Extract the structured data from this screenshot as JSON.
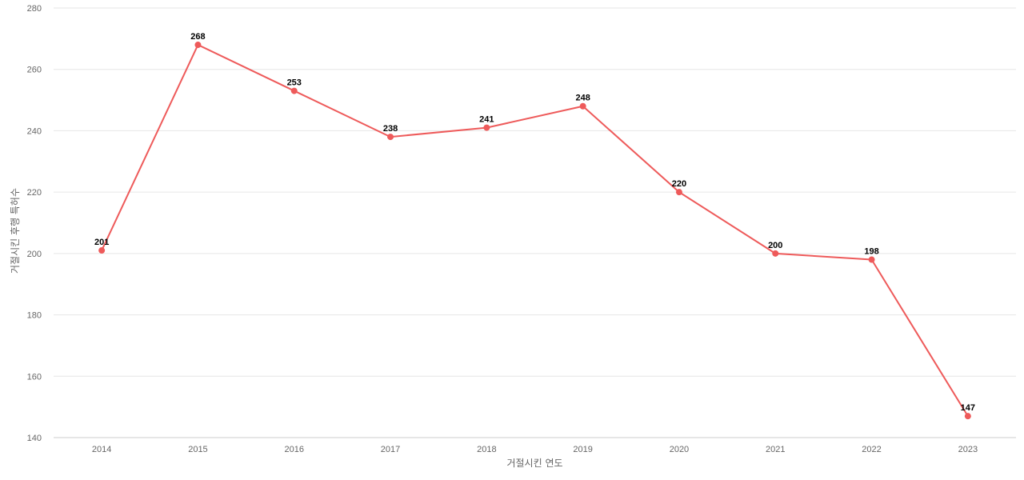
{
  "chart_data": {
    "type": "line",
    "title": "",
    "xlabel": "거절시킨 연도",
    "ylabel": "거절시킨 후행 특허수",
    "x": [
      "2014",
      "2015",
      "2016",
      "2017",
      "2018",
      "2019",
      "2020",
      "2021",
      "2022",
      "2023"
    ],
    "series": [
      {
        "values": [
          201,
          268,
          253,
          238,
          241,
          248,
          220,
          200,
          198,
          147
        ],
        "color": "#ee5a5a"
      }
    ],
    "ylim": [
      140,
      280
    ],
    "yticks": [
      140,
      160,
      180,
      200,
      220,
      240,
      260,
      280
    ],
    "grid": true,
    "legend": "none",
    "data_labels": true
  }
}
